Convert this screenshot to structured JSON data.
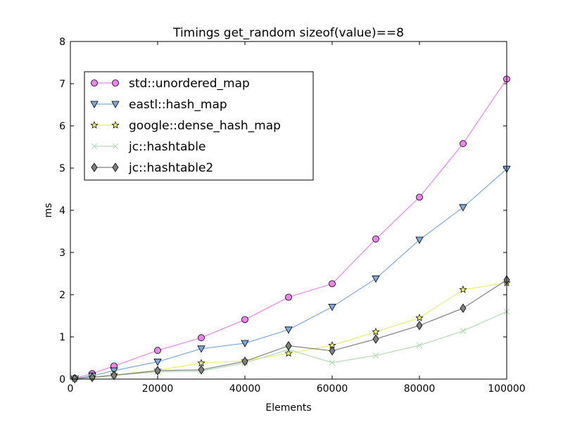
{
  "chart_data": {
    "type": "line",
    "title": "Timings get_random sizeof(value)==8",
    "xlabel": "Elements",
    "ylabel": "ms",
    "xlim": [
      0,
      100000
    ],
    "ylim": [
      0,
      8
    ],
    "xticks": [
      0,
      20000,
      40000,
      60000,
      80000,
      100000
    ],
    "yticks": [
      0,
      1,
      2,
      3,
      4,
      5,
      6,
      7,
      8
    ],
    "grid": false,
    "legend_position": "upper-left",
    "x": [
      1000,
      5000,
      10000,
      20000,
      30000,
      40000,
      50000,
      60000,
      70000,
      80000,
      90000,
      100000
    ],
    "series": [
      {
        "name": "std::unordered_map",
        "color": "#ee82ee",
        "marker": "circle",
        "values": [
          0.02,
          0.13,
          0.31,
          0.68,
          0.98,
          1.41,
          1.94,
          2.26,
          3.32,
          4.31,
          5.58,
          7.11
        ]
      },
      {
        "name": "eastl::hash_map",
        "color": "#7aaadf",
        "marker": "triangle-down",
        "values": [
          0.01,
          0.08,
          0.2,
          0.41,
          0.72,
          0.85,
          1.17,
          1.71,
          2.38,
          3.3,
          4.07,
          4.98
        ]
      },
      {
        "name": "google::dense_hash_map",
        "color": "#e8f06e",
        "marker": "star",
        "values": [
          0.01,
          0.05,
          0.1,
          0.21,
          0.38,
          0.43,
          0.61,
          0.8,
          1.12,
          1.45,
          2.12,
          2.28
        ]
      },
      {
        "name": "jc::hashtable",
        "color": "#b3dcb3",
        "marker": "x",
        "values": [
          0.01,
          0.04,
          0.09,
          0.17,
          0.19,
          0.38,
          0.7,
          0.39,
          0.56,
          0.8,
          1.14,
          1.6
        ]
      },
      {
        "name": "jc::hashtable2",
        "color": "#808080",
        "marker": "diamond",
        "values": [
          0.01,
          0.04,
          0.09,
          0.2,
          0.22,
          0.42,
          0.79,
          0.67,
          0.95,
          1.27,
          1.68,
          2.35
        ]
      }
    ]
  }
}
